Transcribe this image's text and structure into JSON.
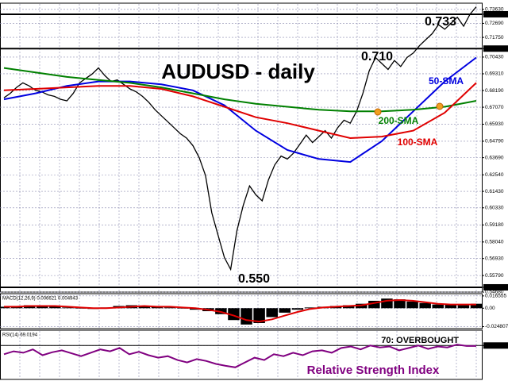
{
  "chart_data": [
    {
      "type": "line",
      "title": "AUDUSD - daily",
      "grid": true,
      "ylim": [
        0.5468,
        0.7399
      ],
      "yticks": [
        {
          "value": 0.7363,
          "label": "0.73630"
        },
        {
          "value": 0.733,
          "label": "0.73300"
        },
        {
          "value": 0.7269,
          "label": "0.72690"
        },
        {
          "value": 0.7175,
          "label": "0.71750"
        },
        {
          "value": 0.71,
          "label": "0.71000"
        },
        {
          "value": 0.7043,
          "label": "0.70430"
        },
        {
          "value": 0.6931,
          "label": "0.69310"
        },
        {
          "value": 0.6819,
          "label": "0.68190"
        },
        {
          "value": 0.6707,
          "label": "0.67070"
        },
        {
          "value": 0.6593,
          "label": "0.65930"
        },
        {
          "value": 0.6479,
          "label": "0.64790"
        },
        {
          "value": 0.6369,
          "label": "0.63690"
        },
        {
          "value": 0.6254,
          "label": "0.62540"
        },
        {
          "value": 0.6143,
          "label": "0.61430"
        },
        {
          "value": 0.6033,
          "label": "0.60330"
        },
        {
          "value": 0.5918,
          "label": "0.59180"
        },
        {
          "value": 0.5804,
          "label": "0.58040"
        },
        {
          "value": 0.5693,
          "label": "0.56930"
        },
        {
          "value": 0.5579,
          "label": "0.55790"
        },
        {
          "value": 0.55,
          "label": "0.55000"
        },
        {
          "value": 0.5468,
          "label": "0.54680"
        }
      ],
      "levels": [
        {
          "value": 0.733,
          "label": "0.733"
        },
        {
          "value": 0.71,
          "label": "0.710"
        },
        {
          "value": 0.55,
          "label": "0.550"
        }
      ],
      "series": [
        {
          "color": "#000000",
          "values": [
            0.677,
            0.68,
            0.684,
            0.687,
            0.685,
            0.682,
            0.681,
            0.679,
            0.678,
            0.676,
            0.675,
            0.68,
            0.687,
            0.69,
            0.693,
            0.697,
            0.692,
            0.688,
            0.689,
            0.686,
            0.683,
            0.681,
            0.678,
            0.674,
            0.669,
            0.665,
            0.661,
            0.657,
            0.653,
            0.65,
            0.645,
            0.637,
            0.625,
            0.6,
            0.585,
            0.57,
            0.562,
            0.588,
            0.605,
            0.618,
            0.612,
            0.608,
            0.622,
            0.632,
            0.638,
            0.636,
            0.64,
            0.646,
            0.652,
            0.647,
            0.651,
            0.655,
            0.65,
            0.657,
            0.662,
            0.66,
            0.668,
            0.68,
            0.695,
            0.704,
            0.7,
            0.696,
            0.702,
            0.698,
            0.704,
            0.707,
            0.712,
            0.716,
            0.72,
            0.726,
            0.723,
            0.727,
            0.731,
            0.725,
            0.733,
            0.738
          ]
        },
        {
          "name": "50-SMA",
          "color": "#0000e0",
          "values": [
            0.676,
            0.68,
            0.685,
            0.688,
            0.688,
            0.686,
            0.682,
            0.672,
            0.655,
            0.642,
            0.636,
            0.634,
            0.648,
            0.668,
            0.688,
            0.704
          ]
        },
        {
          "name": "200-SMA",
          "color": "#008000",
          "values": [
            0.697,
            0.694,
            0.691,
            0.689,
            0.687,
            0.684,
            0.68,
            0.676,
            0.673,
            0.671,
            0.669,
            0.668,
            0.668,
            0.669,
            0.671,
            0.675
          ]
        },
        {
          "name": "100-SMA",
          "color": "#e00000",
          "values": [
            0.682,
            0.683,
            0.684,
            0.685,
            0.685,
            0.683,
            0.678,
            0.671,
            0.664,
            0.66,
            0.655,
            0.65,
            0.651,
            0.655,
            0.667,
            0.687
          ]
        }
      ]
    },
    {
      "type": "bar",
      "title": "MACD(12,26,9) 0.006621 0.004943",
      "grid": true,
      "ylim": [
        -0.0275,
        0.0185
      ],
      "yticks": [
        0.016555,
        {
          "value": 0,
          "label": "0.00"
        },
        -0.024807
      ],
      "series": [
        {
          "type": "bar",
          "color": "#000000",
          "values": [
            0.002,
            0.003,
            0.004,
            0.003,
            0.002,
            0.001,
            0.0,
            -0.001,
            0.001,
            0.003,
            0.004,
            0.003,
            0.002,
            0.001,
            0.0,
            -0.002,
            -0.004,
            -0.008,
            -0.016,
            -0.022,
            -0.02,
            -0.012,
            -0.006,
            -0.002,
            0.001,
            0.002,
            0.003,
            0.004,
            0.006,
            0.01,
            0.013,
            0.012,
            0.009,
            0.007,
            0.005,
            0.005,
            0.004,
            0.006
          ]
        },
        {
          "type": "line",
          "color": "#e00000",
          "values": [
            0.002,
            0.002,
            0.003,
            0.003,
            0.003,
            0.002,
            0.001,
            0.0,
            0.0,
            0.001,
            0.002,
            0.003,
            0.002,
            0.002,
            0.001,
            0.0,
            -0.002,
            -0.005,
            -0.01,
            -0.016,
            -0.018,
            -0.015,
            -0.01,
            -0.005,
            -0.001,
            0.001,
            0.002,
            0.003,
            0.004,
            0.007,
            0.01,
            0.011,
            0.01,
            0.008,
            0.006,
            0.005,
            0.005,
            0.005
          ]
        }
      ]
    },
    {
      "type": "line",
      "title": "RSI(14) 69.0194",
      "subtitle": "Relative Strength Index",
      "grid": true,
      "ylim": [
        0,
        100
      ],
      "yticks": [
        {
          "value": 70,
          "label": "70.00000"
        }
      ],
      "levels": [
        {
          "value": 70,
          "label": "70: OVERBOUGHT"
        }
      ],
      "series": [
        {
          "color": "#800080",
          "values": [
            52,
            58,
            55,
            62,
            50,
            56,
            60,
            54,
            48,
            55,
            62,
            58,
            65,
            52,
            57,
            50,
            45,
            48,
            40,
            35,
            42,
            38,
            32,
            28,
            25,
            35,
            45,
            40,
            52,
            48,
            55,
            50,
            58,
            60,
            55,
            65,
            68,
            62,
            70,
            66,
            68,
            60,
            65,
            70,
            63,
            68,
            66,
            72,
            69,
            69
          ]
        }
      ]
    }
  ]
}
